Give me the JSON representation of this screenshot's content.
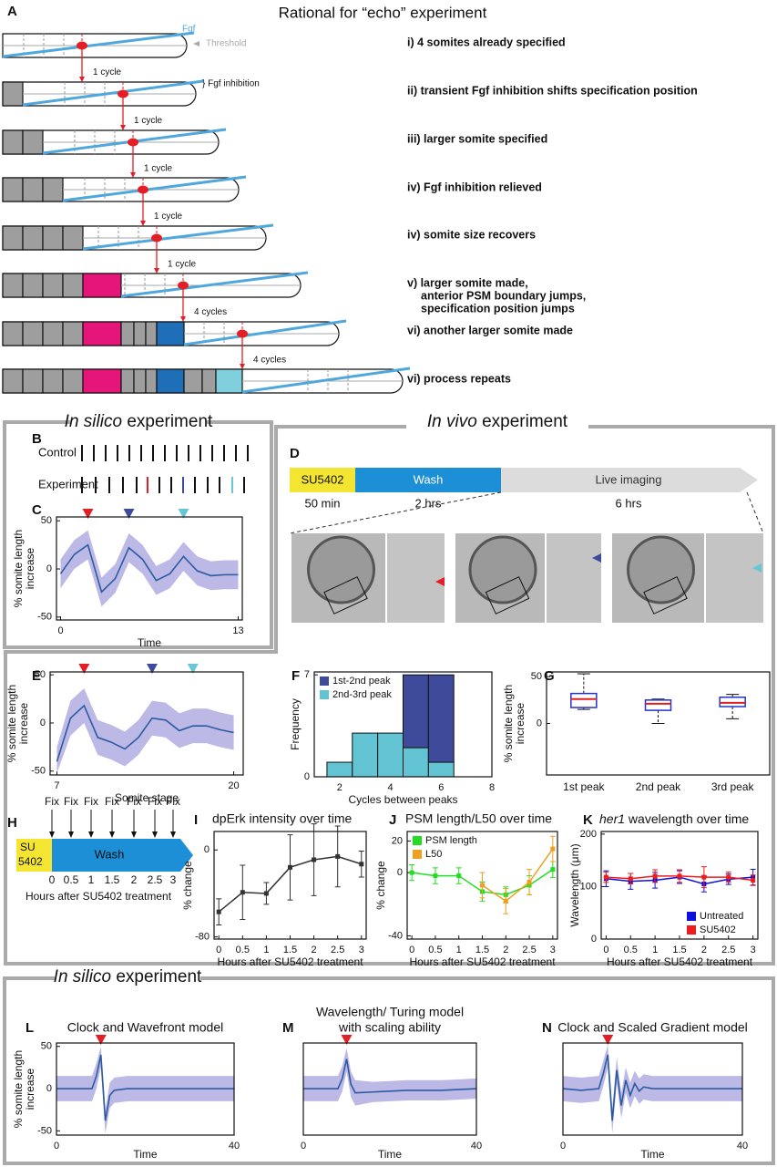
{
  "panel_letters": [
    "A",
    "B",
    "C",
    "D",
    "E",
    "F",
    "G",
    "H",
    "I",
    "J",
    "K",
    "L",
    "M",
    "N"
  ],
  "headers": [
    {
      "italic": "In silico",
      "text": "experiment"
    },
    {
      "italic": "In vivo",
      "text": "experiment"
    },
    {
      "italic": "In silico",
      "text": "experiment"
    }
  ],
  "panel_a": {
    "title": "Rational for “echo” experiment",
    "fgf": "Fgf",
    "threshold": "Threshold",
    "inhibition": "} Fgf inhibition",
    "steps": [
      "1 cycle",
      "1 cycle",
      "1 cycle",
      "1 cycle",
      "1 cycle",
      "4 cycles",
      "4 cycles"
    ],
    "rows": [
      [
        "i) 4 somites already specified"
      ],
      [
        "ii) transient Fgf inhibition shifts specification position"
      ],
      [
        "iii) larger somite specified"
      ],
      [
        "iv) Fgf inhibition relieved"
      ],
      [
        "iv) somite size recovers"
      ],
      [
        "v) larger somite made,",
        "anterior PSM boundary jumps,",
        "specification position jumps"
      ],
      [
        "vi) another larger somite made"
      ],
      [
        "vi) process repeats"
      ]
    ]
  },
  "panel_b": {
    "control": "Control",
    "experiment": "Experiment"
  },
  "panel_d": {
    "stages": [
      {
        "label": "SU5402",
        "duration": "50 min"
      },
      {
        "label": "Wash",
        "duration": "2 hrs"
      },
      {
        "label": "Live imaging",
        "duration": "6 hrs"
      }
    ]
  },
  "panel_h": {
    "fix_labels": [
      "Fix",
      "Fix",
      "Fix",
      "Fix",
      "Fix",
      "Fix",
      "Fix"
    ],
    "drug": [
      "SU",
      "5402"
    ],
    "wash": "Wash",
    "ticks": [
      "0",
      "0.5",
      "1",
      "1.5",
      "2",
      "2.5",
      "3"
    ],
    "xlabel": "Hours after SU5402 treatment"
  },
  "chart_data": [
    {
      "type": "line",
      "x": [
        0,
        1,
        2,
        3,
        4,
        5,
        6,
        7,
        8,
        9,
        10,
        11,
        12,
        13
      ],
      "series": [
        {
          "color": "#2c5aa0",
          "band_color": "#a6a2de",
          "values": [
            -5,
            15,
            25,
            -24,
            -10,
            22,
            10,
            -12,
            -5,
            13,
            -2,
            -7,
            -6,
            -6
          ],
          "band_low": [
            -20,
            0,
            10,
            -39,
            -25,
            7,
            -5,
            -27,
            -20,
            -2,
            -17,
            -22,
            -21,
            -21
          ],
          "band_high": [
            10,
            30,
            40,
            -9,
            5,
            37,
            25,
            3,
            10,
            28,
            13,
            8,
            9,
            9
          ]
        }
      ],
      "xlim": [
        -0.3,
        13.3
      ],
      "ylim": [
        -53,
        54
      ],
      "xticks": [
        0,
        13
      ],
      "yticks": [
        -50,
        0,
        50
      ],
      "xlabel": "Time",
      "ylabel": [
        "% somite length",
        "increase"
      ],
      "peak_markers": [
        {
          "x": 2,
          "color": "#e31e24"
        },
        {
          "x": 5,
          "color": "#3c4c9b"
        },
        {
          "x": 9,
          "color": "#67c7d4"
        }
      ]
    },
    {
      "type": "line",
      "x": [
        7,
        8,
        9,
        10,
        11,
        12,
        13,
        14,
        15,
        16,
        17,
        18,
        19,
        20
      ],
      "series": [
        {
          "color": "#2c5aa0",
          "band_color": "#a6a2de",
          "values": [
            -40,
            5,
            18,
            -15,
            -20,
            -27,
            -15,
            5,
            3,
            -8,
            -3,
            -3,
            -7,
            -10
          ],
          "band_low": [
            -52,
            -13,
            0,
            -33,
            -38,
            -45,
            -33,
            -13,
            -15,
            -26,
            -21,
            -21,
            -25,
            -28
          ],
          "band_high": [
            -25,
            23,
            36,
            3,
            -2,
            -9,
            3,
            23,
            21,
            10,
            15,
            15,
            11,
            8
          ]
        }
      ],
      "xlim": [
        6.5,
        20.7
      ],
      "ylim": [
        -54,
        53
      ],
      "xticks": [
        7,
        20
      ],
      "yticks": [
        -50,
        0,
        50
      ],
      "xlabel": "Somite stage",
      "ylabel": [
        "% somite length",
        "increase"
      ],
      "peak_markers": [
        {
          "x": 9,
          "color": "#e31e24"
        },
        {
          "x": 14,
          "color": "#3c4c9b"
        },
        {
          "x": 17,
          "color": "#67c7d4"
        }
      ]
    },
    {
      "type": "histogram",
      "bins": [
        1.5,
        2.5,
        3.5,
        4.5,
        5.5,
        6.5
      ],
      "series": [
        {
          "name": "1st-2nd peak",
          "color": "#3d4b9a",
          "values": [
            0,
            0,
            0,
            5,
            6
          ]
        },
        {
          "name": "2nd-3rd peak",
          "color": "#62c3d2",
          "values": [
            1,
            3,
            3,
            2,
            1
          ]
        }
      ],
      "stacked": true,
      "legend": "upper left",
      "xlim": [
        1,
        8
      ],
      "ylim": [
        0,
        7.2
      ],
      "xticks": [
        2,
        4,
        6,
        8
      ],
      "yticks": [
        0,
        7
      ],
      "xlabel": "Cycles between peaks",
      "ylabel": [
        "Frequency"
      ]
    },
    {
      "type": "box",
      "categories": [
        "1st peak",
        "2nd peak",
        "3rd peak"
      ],
      "boxes": [
        {
          "low": 15,
          "q1": 17,
          "median": 26,
          "q3": 32,
          "high": 53
        },
        {
          "low": 0,
          "q1": 14,
          "median": 21,
          "q3": 25,
          "high": 26
        },
        {
          "low": 5,
          "q1": 18,
          "median": 22,
          "q3": 28,
          "high": 31
        }
      ],
      "color": "#2233cc",
      "median_color": "#e02020",
      "ylim": [
        -55,
        55
      ],
      "yticks": [
        0,
        50
      ],
      "ylabel": [
        "% somite length",
        "increase"
      ]
    },
    {
      "type": "errorline",
      "title": "dpErk intensity over time",
      "series": [
        {
          "color": "#333333",
          "x": [
            0,
            0.5,
            1,
            1.5,
            2,
            2.5,
            3
          ],
          "values": [
            -57,
            -39,
            -40,
            -16,
            -9,
            -6,
            -13
          ],
          "errors": [
            12,
            25,
            10,
            30,
            33,
            28,
            12
          ]
        }
      ],
      "xlim": [
        -0.1,
        3.1
      ],
      "ylim": [
        -82,
        17
      ],
      "xticks": [
        0,
        0.5,
        1,
        1.5,
        2,
        2.5,
        3
      ],
      "yticks": [
        -80,
        0
      ],
      "xlabel": "Hours after SU5402 treatment",
      "ylabel": [
        "% change"
      ]
    },
    {
      "type": "errorline",
      "title": "PSM length/L50 over time",
      "series": [
        {
          "name": "PSM length",
          "color": "#22dd22",
          "x": [
            0,
            0.5,
            1,
            1.5,
            2,
            2.5,
            3
          ],
          "values": [
            0,
            -2,
            -2,
            -12,
            -14,
            -8,
            2
          ],
          "errors": [
            5,
            5,
            5,
            6,
            5,
            6,
            5
          ]
        },
        {
          "name": "L50",
          "color": "#f0a020",
          "x": [
            1.5,
            2,
            2.5,
            3
          ],
          "values": [
            -8,
            -18,
            -6,
            15
          ],
          "errors": [
            8,
            8,
            8,
            8
          ]
        }
      ],
      "legend": "upper left",
      "xlim": [
        -0.1,
        3.1
      ],
      "ylim": [
        -42,
        26
      ],
      "xticks": [
        0,
        0.5,
        1,
        1.5,
        2,
        2.5,
        3
      ],
      "yticks": [
        -40,
        0,
        20
      ],
      "xlabel": "Hours after SU5402 treatment",
      "ylabel": [
        "% change"
      ]
    },
    {
      "type": "errorline",
      "title_italic": "her1",
      "title": "wavelength over time",
      "series": [
        {
          "name": "Untreated",
          "color": "#1010dd",
          "x": [
            0,
            0.5,
            1,
            1.5,
            2,
            2.5,
            3
          ],
          "values": [
            115,
            110,
            112,
            118,
            105,
            114,
            118
          ],
          "errors": [
            15,
            15,
            15,
            12,
            15,
            10,
            15
          ]
        },
        {
          "name": "SU5402",
          "color": "#ee1c1c",
          "x": [
            0,
            0.5,
            1,
            1.5,
            2,
            2.5,
            3
          ],
          "values": [
            118,
            115,
            120,
            120,
            118,
            118,
            112
          ],
          "errors": [
            10,
            10,
            12,
            12,
            20,
            10,
            10
          ]
        }
      ],
      "legend": "lower right",
      "xlim": [
        -0.1,
        3.1
      ],
      "ylim": [
        0,
        205
      ],
      "xticks": [
        0,
        0.5,
        1,
        1.5,
        2,
        2.5,
        3
      ],
      "yticks": [
        0,
        100,
        200
      ],
      "xlabel": "Hours after SU5402 treatment",
      "ylabel": [
        "Wavelength (μm)"
      ]
    },
    {
      "type": "line",
      "title": [
        "Clock and Wavefront model"
      ],
      "x": [
        0,
        4,
        8,
        9,
        10,
        11,
        12,
        13,
        16,
        20,
        24,
        28,
        32,
        36,
        40
      ],
      "series": [
        {
          "color": "#2c5aa0",
          "band_color": "#a6a2de",
          "values": [
            0,
            0,
            0,
            15,
            40,
            -38,
            -8,
            -2,
            0,
            0,
            0,
            0,
            0,
            0,
            0
          ],
          "band_low": [
            -15,
            -15,
            -15,
            0,
            25,
            -53,
            -23,
            -17,
            -15,
            -15,
            -15,
            -15,
            -15,
            -15,
            -15
          ],
          "band_high": [
            15,
            15,
            15,
            30,
            50,
            -25,
            7,
            13,
            15,
            15,
            15,
            15,
            15,
            15,
            15
          ]
        }
      ],
      "xlim": [
        0,
        40
      ],
      "ylim": [
        -55,
        54
      ],
      "xticks": [
        0,
        40
      ],
      "yticks": [
        -50,
        0,
        50
      ],
      "xlabel": "Time",
      "ylabel": [
        "% somite length",
        "increase"
      ],
      "peak_markers": [
        {
          "x": 10,
          "color": "#e31e24"
        }
      ]
    },
    {
      "type": "line",
      "title": [
        "Wavelength/ Turing model",
        "with scaling ability"
      ],
      "x": [
        0,
        4,
        8,
        9,
        10,
        11,
        12,
        16,
        20,
        24,
        28,
        32,
        36,
        40
      ],
      "series": [
        {
          "color": "#2c5aa0",
          "band_color": "#a6a2de",
          "values": [
            0,
            0,
            0,
            12,
            35,
            5,
            -5,
            -4,
            -3,
            -2,
            -2,
            -2,
            -1,
            0
          ],
          "band_low": [
            -15,
            -15,
            -15,
            -3,
            20,
            -10,
            -20,
            -16,
            -15,
            -14,
            -14,
            -14,
            -13,
            -12
          ],
          "band_high": [
            15,
            15,
            15,
            27,
            48,
            20,
            10,
            8,
            9,
            10,
            10,
            10,
            11,
            12
          ]
        }
      ],
      "xlim": [
        0,
        40
      ],
      "ylim": [
        -55,
        54
      ],
      "xticks": [
        0,
        40
      ],
      "xlabel": "Time",
      "peak_markers": [
        {
          "x": 10,
          "color": "#e31e24"
        }
      ]
    },
    {
      "type": "line",
      "title": [
        "Clock and Scaled Gradient model"
      ],
      "x": [
        0,
        4,
        8,
        9,
        10,
        11,
        12,
        13,
        14,
        15,
        16,
        17,
        18,
        20,
        24,
        28,
        32,
        36,
        40
      ],
      "series": [
        {
          "color": "#2c5aa0",
          "band_color": "#a6a2de",
          "values": [
            0,
            -2,
            0,
            18,
            40,
            -38,
            22,
            -20,
            10,
            -8,
            6,
            -3,
            2,
            0,
            0,
            0,
            0,
            0,
            0
          ],
          "band_low": [
            -15,
            -17,
            -15,
            3,
            25,
            -53,
            7,
            -35,
            -5,
            -23,
            -9,
            -18,
            -13,
            -15,
            -15,
            -15,
            -15,
            -15,
            -15
          ],
          "band_high": [
            15,
            13,
            15,
            33,
            52,
            -23,
            37,
            -5,
            25,
            7,
            21,
            12,
            17,
            15,
            15,
            15,
            15,
            15,
            15
          ]
        }
      ],
      "xlim": [
        0,
        40
      ],
      "ylim": [
        -55,
        54
      ],
      "xticks": [
        0,
        40
      ],
      "xlabel": "Time",
      "peak_markers": [
        {
          "x": 10,
          "color": "#e31e24"
        }
      ]
    }
  ]
}
